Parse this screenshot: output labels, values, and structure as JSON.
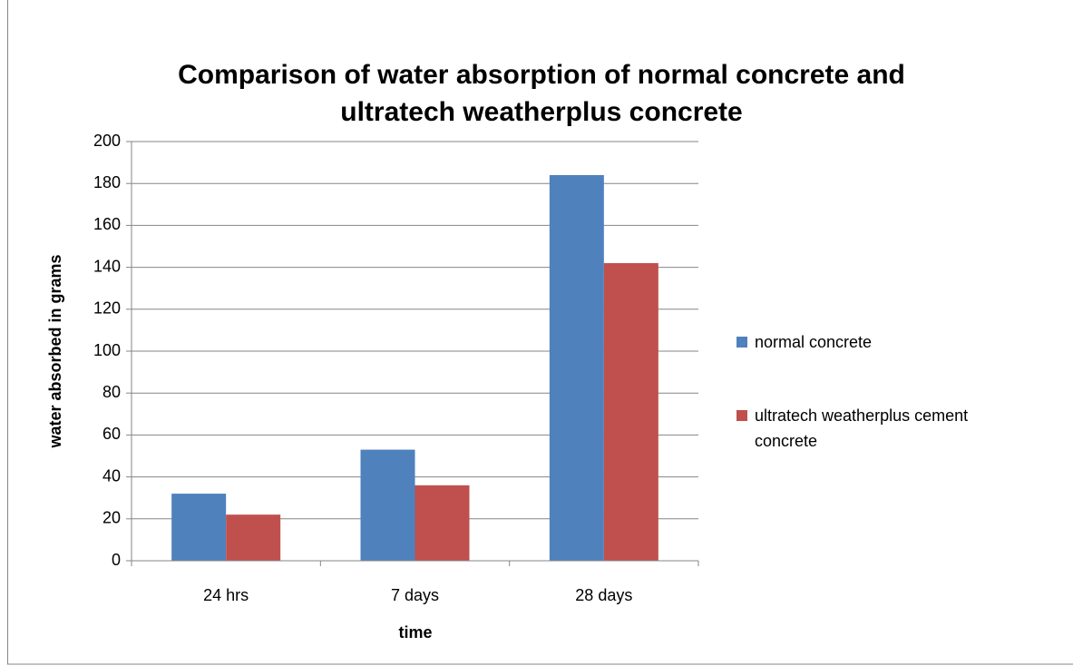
{
  "chart_data": {
    "type": "bar",
    "title": "Comparison of water absorption of normal concrete and ultratech weatherplus concrete",
    "x_label": "time",
    "y_label": "water  absorbed in grams",
    "categories": [
      "24 hrs",
      "7 days",
      "28 days"
    ],
    "series": [
      {
        "name": "normal concrete",
        "color": "#4f81bd",
        "values": [
          32,
          53,
          184
        ]
      },
      {
        "name": "ultratech weatherplus cement concrete",
        "color": "#c0504d",
        "values": [
          22,
          36,
          142
        ]
      }
    ],
    "ylim": [
      0,
      200
    ],
    "yticks": [
      0,
      20,
      40,
      60,
      80,
      100,
      120,
      140,
      160,
      180,
      200
    ],
    "grid": true,
    "legend": "right"
  }
}
